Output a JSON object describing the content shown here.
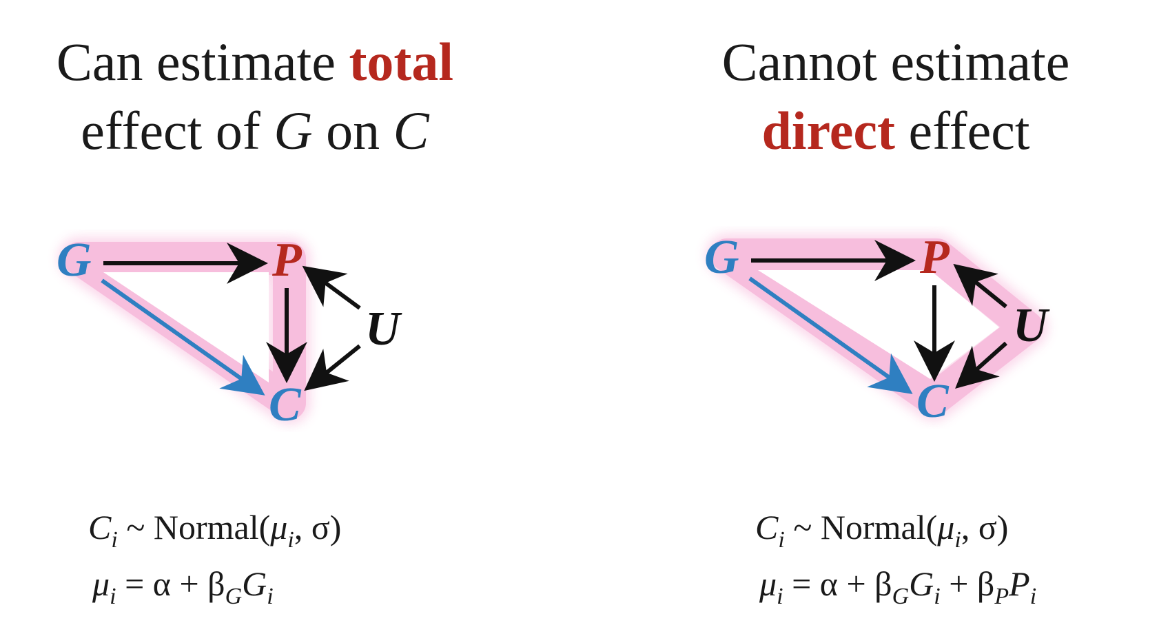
{
  "left": {
    "title": {
      "line1_prefix": "Can estimate ",
      "line1_highlight": "total",
      "line2_a": "effect of ",
      "line2_var1": "G",
      "line2_b": " on ",
      "line2_var2": "C"
    },
    "nodes": {
      "G": "G",
      "P": "P",
      "U": "U",
      "C": "C"
    },
    "equation1": {
      "lhs": "C",
      "lhs_sub": "i",
      "rel": " ~ Normal(",
      "mu": "μ",
      "mu_sub": "i",
      "rest": ", σ)"
    },
    "equation2": {
      "mu": "μ",
      "mu_sub": "i",
      "eq": " = α + β",
      "beta_sub": "G",
      "g": "G",
      "g_sub": "i"
    }
  },
  "right": {
    "title": {
      "line1": "Cannot estimate",
      "line2_highlight": "direct",
      "line2_rest": " effect"
    },
    "nodes": {
      "G": "G",
      "P": "P",
      "U": "U",
      "C": "C"
    },
    "equation1": {
      "lhs": "C",
      "lhs_sub": "i",
      "rel": " ~ Normal(",
      "mu": "μ",
      "mu_sub": "i",
      "rest": ", σ)"
    },
    "equation2": {
      "mu": "μ",
      "mu_sub": "i",
      "eq": " = α + β",
      "beta_sub": "G",
      "g": "G",
      "g_sub": "i",
      "plus": " + β",
      "beta2_sub": "P",
      "p": "P",
      "p_sub": "i"
    }
  },
  "colors": {
    "highlight_text": "#b5281e",
    "node_blue": "#2f7fc1",
    "node_red": "#b5281e",
    "node_black": "#111111",
    "path_glow": "#f7b8da",
    "arrow_black": "#111111",
    "arrow_blue": "#2f7fc1"
  }
}
